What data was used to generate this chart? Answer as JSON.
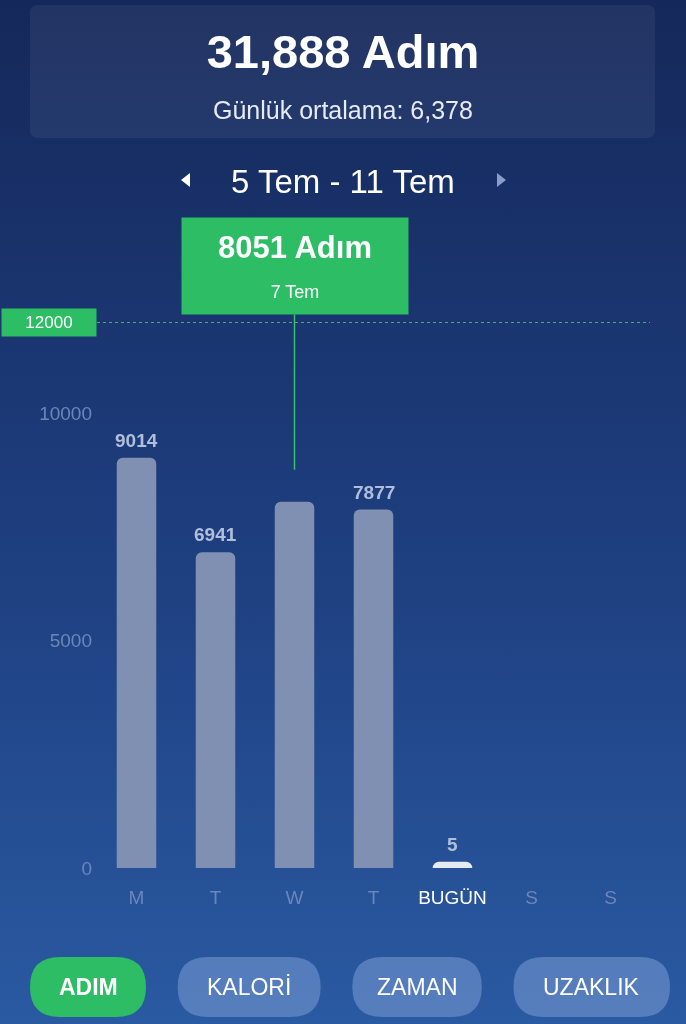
{
  "chart_data": {
    "type": "bar",
    "title": "31,888 Adım",
    "subtitle": "Günlük ortalama: 6,378",
    "categories": [
      "M",
      "T",
      "W",
      "T",
      "BUGÜN",
      "S",
      "S"
    ],
    "values": [
      9014,
      6941,
      8051,
      7877,
      5,
      null,
      null
    ],
    "colors": [
      "#7f90b2",
      "#7f90b2",
      "#7f90b2",
      "#7f90b2",
      "#e6eaf3",
      null,
      null
    ],
    "value_labels": [
      "9014",
      "6941",
      null,
      "7877",
      "5",
      null,
      null
    ],
    "ylim": [
      0,
      12000
    ],
    "yticks": [
      0,
      5000,
      10000
    ],
    "grid": false,
    "ref_lines": [
      {
        "axis": "y",
        "value": 12000,
        "label": "12000",
        "color": "#2dbd64",
        "line_style": "dotted"
      }
    ],
    "annotations": [
      "5 Tem - 11 Tem",
      {
        "text": "8051 Adım\n7 Tem",
        "x": "W",
        "y": 8051
      },
      "ADIM",
      "KALORİ",
      "ZAMAN",
      "UZAKLIK"
    ]
  }
}
